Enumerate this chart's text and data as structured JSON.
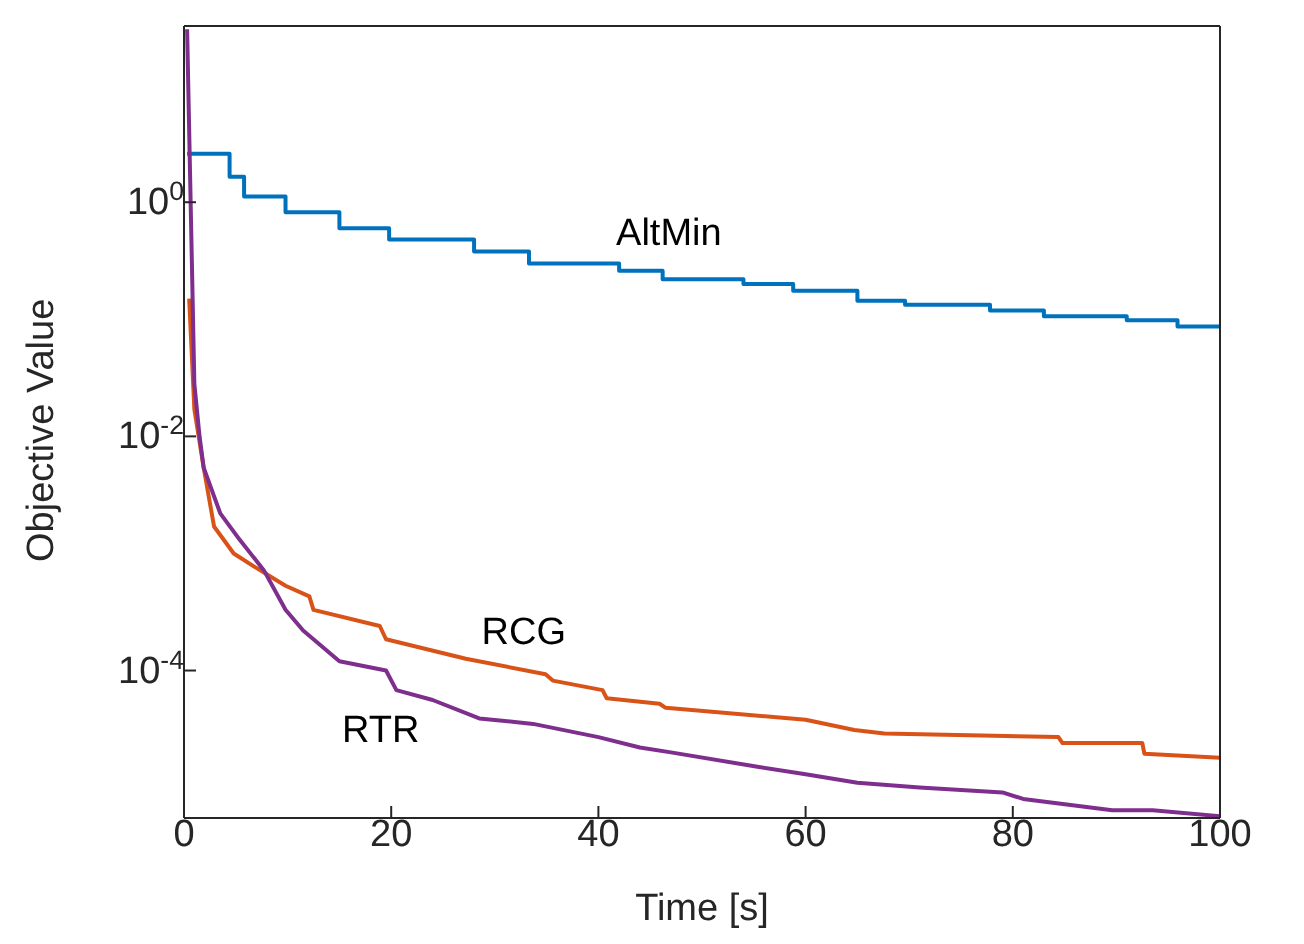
{
  "chart_data": {
    "type": "line",
    "xlabel": "Time [s]",
    "ylabel": "Objective Value",
    "log": "y",
    "marker": "none",
    "line_style": "solid",
    "xlim": [
      0,
      100
    ],
    "xticks": [
      0,
      20,
      40,
      60,
      80,
      100
    ],
    "ylim": [
      5.5e-06,
      32
    ],
    "yticks": [
      {
        "value": 0.0001,
        "label": "10$^{-4}$"
      },
      {
        "value": 0.01,
        "label": "10$^{-2}$"
      },
      {
        "value": 1,
        "label": "10$^{0}$"
      }
    ],
    "series": [
      {
        "name": "AltMin",
        "type": "step",
        "color": "#0072bd",
        "x": [
          0.3,
          4.4,
          5.8,
          9.8,
          15,
          19.8,
          28,
          33.3,
          42,
          46.2,
          54,
          58.8,
          65,
          69.6,
          77.8,
          83,
          91,
          95.9,
          100
        ],
        "values": [
          2.6,
          1.65,
          1.12,
          0.82,
          0.6,
          0.48,
          0.38,
          0.3,
          0.26,
          0.22,
          0.2,
          0.175,
          0.144,
          0.133,
          0.119,
          0.106,
          0.098,
          0.087,
          0.087
        ]
      },
      {
        "name": "RCG",
        "color": "#d95319",
        "x": [
          0.5,
          1,
          1.9,
          2.9,
          4.8,
          6.7,
          9.8,
          12.1,
          12.5,
          18.9,
          19.5,
          27.2,
          34.9,
          35.6,
          40.4,
          40.8,
          45.9,
          46.5,
          60,
          64.7,
          67.6,
          84.4,
          84.8,
          92.5,
          92.7,
          100
        ],
        "values": [
          0.15,
          0.017,
          0.0054,
          0.0017,
          0.001,
          0.00078,
          0.00053,
          0.00043,
          0.00033,
          0.00024,
          0.000185,
          0.000126,
          9.3e-05,
          8.2e-05,
          6.8e-05,
          5.8e-05,
          5.2e-05,
          4.8e-05,
          3.8e-05,
          3.1e-05,
          2.9e-05,
          2.7e-05,
          2.4e-05,
          2.4e-05,
          1.95e-05,
          1.8e-05
        ]
      },
      {
        "name": "RTR",
        "color": "#7e2f8e",
        "x": [
          0.3,
          1,
          1.5,
          1.9,
          3.5,
          5.4,
          7.7,
          9.8,
          11.5,
          15,
          19.5,
          20.5,
          24,
          28.5,
          33.7,
          40,
          44,
          47,
          55.5,
          60,
          65,
          71,
          79,
          81,
          89.6,
          93.5,
          100
        ],
        "values": [
          30,
          0.028,
          0.01,
          0.0054,
          0.0022,
          0.0013,
          0.00072,
          0.00033,
          0.00022,
          0.00012,
          0.0001,
          6.8e-05,
          5.6e-05,
          3.9e-05,
          3.5e-05,
          2.7e-05,
          2.2e-05,
          2e-05,
          1.5e-05,
          1.3e-05,
          1.1e-05,
          1e-05,
          9.1e-06,
          8e-06,
          6.4e-06,
          6.4e-06,
          5.7e-06
        ]
      }
    ]
  }
}
